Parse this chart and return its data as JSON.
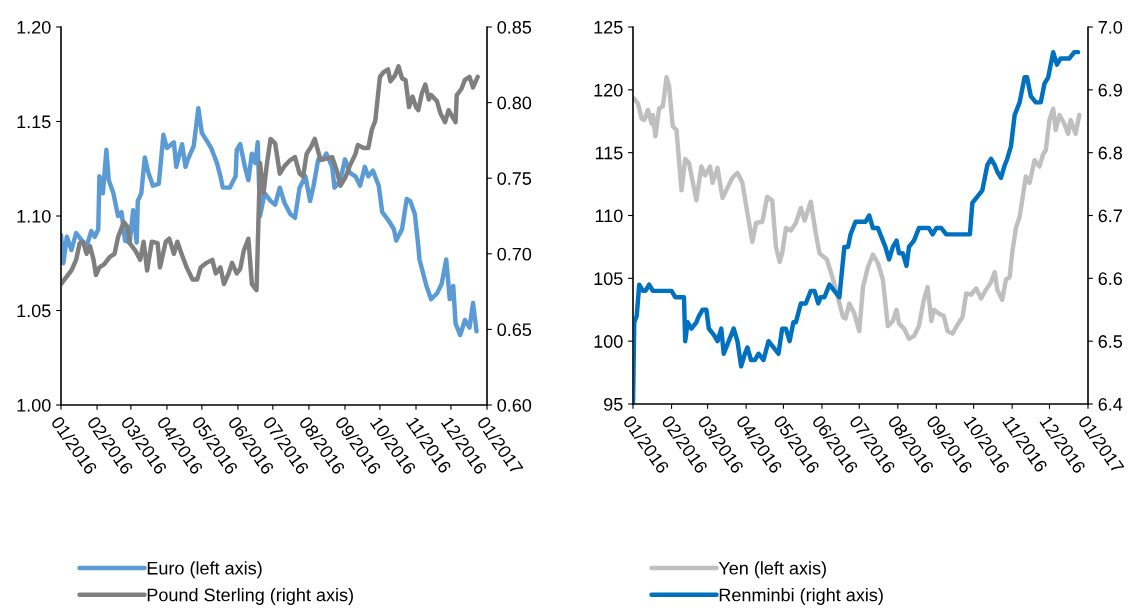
{
  "chart_data": [
    {
      "type": "line",
      "legend": "bottom",
      "xlim": [
        "2016-01-01",
        "2017-01-01"
      ],
      "xticks": [
        {
          "value": "2016-01-01",
          "label": "01/2016"
        },
        {
          "value": "2016-02-01",
          "label": "02/2016"
        },
        {
          "value": "2016-03-01",
          "label": "03/2016"
        },
        {
          "value": "2016-04-01",
          "label": "04/2016"
        },
        {
          "value": "2016-05-01",
          "label": "05/2016"
        },
        {
          "value": "2016-06-01",
          "label": "06/2016"
        },
        {
          "value": "2016-07-01",
          "label": "07/2016"
        },
        {
          "value": "2016-08-01",
          "label": "08/2016"
        },
        {
          "value": "2016-09-01",
          "label": "09/2016"
        },
        {
          "value": "2016-10-01",
          "label": "10/2016"
        },
        {
          "value": "2016-11-01",
          "label": "11/2016"
        },
        {
          "value": "2016-12-01",
          "label": "12/2016"
        },
        {
          "value": "2017-01-01",
          "label": "01/2017"
        }
      ],
      "ylim": [
        1.0,
        1.2
      ],
      "yticks": [
        {
          "value": 1.0,
          "label": "1.00"
        },
        {
          "value": 1.05,
          "label": "1.05"
        },
        {
          "value": 1.1,
          "label": "1.10"
        },
        {
          "value": 1.15,
          "label": "1.15"
        },
        {
          "value": 1.2,
          "label": "1.20"
        }
      ],
      "y2lim": [
        0.6,
        0.85
      ],
      "y2ticks": [
        {
          "value": 0.6,
          "label": "0.60"
        },
        {
          "value": 0.65,
          "label": "0.65"
        },
        {
          "value": 0.7,
          "label": "0.70"
        },
        {
          "value": 0.75,
          "label": "0.75"
        },
        {
          "value": 0.8,
          "label": "0.80"
        },
        {
          "value": 0.85,
          "label": "0.85"
        }
      ],
      "series": [
        {
          "name": "Euro (left axis)",
          "color": "#5b9bd5",
          "x": [
            "2016-01-01",
            "2016-01-03",
            "2016-01-06",
            "2016-01-10",
            "2016-01-14",
            "2016-01-19",
            "2016-01-23",
            "2016-01-27",
            "2016-01-30",
            "2016-02-02",
            "2016-02-03",
            "2016-02-06",
            "2016-02-09",
            "2016-02-11",
            "2016-02-15",
            "2016-02-19",
            "2016-02-22",
            "2016-02-25",
            "2016-02-29",
            "2016-03-03",
            "2016-03-06",
            "2016-03-07",
            "2016-03-10",
            "2016-03-13",
            "2016-03-16",
            "2016-03-20",
            "2016-03-25",
            "2016-03-29",
            "2016-04-01",
            "2016-04-07",
            "2016-04-09",
            "2016-04-14",
            "2016-04-17",
            "2016-04-19",
            "2016-04-24",
            "2016-04-28",
            "2016-05-01",
            "2016-05-05",
            "2016-05-09",
            "2016-05-14",
            "2016-05-17",
            "2016-05-19",
            "2016-05-25",
            "2016-05-30",
            "2016-05-31",
            "2016-06-03",
            "2016-06-07",
            "2016-06-10",
            "2016-06-13",
            "2016-06-16",
            "2016-06-18",
            "2016-06-20",
            "2016-06-24",
            "2016-06-29",
            "2016-07-03",
            "2016-07-07",
            "2016-07-11",
            "2016-07-16",
            "2016-07-20",
            "2016-07-24",
            "2016-07-29",
            "2016-08-02",
            "2016-08-05",
            "2016-08-09",
            "2016-08-13",
            "2016-08-16",
            "2016-08-21",
            "2016-08-23",
            "2016-08-28",
            "2016-09-01",
            "2016-09-05",
            "2016-09-10",
            "2016-09-14",
            "2016-09-18",
            "2016-09-21",
            "2016-09-25",
            "2016-09-30",
            "2016-10-03",
            "2016-10-08",
            "2016-10-13",
            "2016-10-15",
            "2016-10-20",
            "2016-10-24",
            "2016-10-27",
            "2016-10-31",
            "2016-11-03",
            "2016-11-04",
            "2016-11-07",
            "2016-11-10",
            "2016-11-14",
            "2016-11-19",
            "2016-11-23",
            "2016-11-27",
            "2016-11-30",
            "2016-12-03",
            "2016-12-05",
            "2016-12-09",
            "2016-12-13",
            "2016-12-17",
            "2016-12-20",
            "2016-12-23"
          ],
          "values": [
            1.09,
            1.075,
            1.089,
            1.082,
            1.091,
            1.087,
            1.084,
            1.092,
            1.089,
            1.093,
            1.121,
            1.112,
            1.135,
            1.119,
            1.112,
            1.1,
            1.102,
            1.087,
            1.086,
            1.103,
            1.086,
            1.108,
            1.112,
            1.131,
            1.123,
            1.116,
            1.117,
            1.143,
            1.136,
            1.139,
            1.126,
            1.138,
            1.126,
            1.13,
            1.137,
            1.157,
            1.144,
            1.14,
            1.136,
            1.128,
            1.121,
            1.115,
            1.115,
            1.121,
            1.135,
            1.138,
            1.126,
            1.119,
            1.133,
            1.128,
            1.139,
            1.1,
            1.112,
            1.108,
            1.106,
            1.115,
            1.107,
            1.101,
            1.099,
            1.115,
            1.121,
            1.108,
            1.116,
            1.13,
            1.13,
            1.133,
            1.126,
            1.115,
            1.119,
            1.13,
            1.123,
            1.121,
            1.116,
            1.126,
            1.121,
            1.124,
            1.116,
            1.102,
            1.098,
            1.093,
            1.087,
            1.093,
            1.109,
            1.108,
            1.101,
            1.084,
            1.077,
            1.07,
            1.063,
            1.056,
            1.059,
            1.064,
            1.077,
            1.056,
            1.063,
            1.043,
            1.037,
            1.045,
            1.041,
            1.054,
            1.039
          ]
        },
        {
          "name": "Pound Sterling (right axis)",
          "color": "#7f7f7f",
          "axis": "y2",
          "x": [
            "2016-01-01",
            "2016-01-06",
            "2016-01-10",
            "2016-01-14",
            "2016-01-17",
            "2016-01-20",
            "2016-01-23",
            "2016-01-26",
            "2016-01-29",
            "2016-01-31",
            "2016-02-03",
            "2016-02-07",
            "2016-02-12",
            "2016-02-16",
            "2016-02-19",
            "2016-02-24",
            "2016-02-27",
            "2016-02-29",
            "2016-03-05",
            "2016-03-09",
            "2016-03-12",
            "2016-03-15",
            "2016-03-19",
            "2016-03-24",
            "2016-03-26",
            "2016-03-31",
            "2016-04-03",
            "2016-04-07",
            "2016-04-10",
            "2016-04-14",
            "2016-04-18",
            "2016-04-23",
            "2016-04-27",
            "2016-04-30",
            "2016-05-05",
            "2016-05-10",
            "2016-05-13",
            "2016-05-17",
            "2016-05-20",
            "2016-05-24",
            "2016-05-27",
            "2016-05-31",
            "2016-06-03",
            "2016-06-06",
            "2016-06-10",
            "2016-06-13",
            "2016-06-17",
            "2016-06-20",
            "2016-06-23",
            "2016-06-26",
            "2016-06-29",
            "2016-07-03",
            "2016-07-07",
            "2016-07-11",
            "2016-07-16",
            "2016-07-20",
            "2016-07-24",
            "2016-07-27",
            "2016-07-30",
            "2016-08-03",
            "2016-08-06",
            "2016-08-11",
            "2016-08-16",
            "2016-08-21",
            "2016-08-25",
            "2016-08-28",
            "2016-09-01",
            "2016-09-05",
            "2016-09-10",
            "2016-09-12",
            "2016-09-17",
            "2016-09-21",
            "2016-09-24",
            "2016-09-27",
            "2016-10-01",
            "2016-10-04",
            "2016-10-08",
            "2016-10-10",
            "2016-10-14",
            "2016-10-17",
            "2016-10-20",
            "2016-10-23",
            "2016-10-26",
            "2016-10-29",
            "2016-11-01",
            "2016-11-03",
            "2016-11-06",
            "2016-11-09",
            "2016-11-12",
            "2016-11-14",
            "2016-11-19",
            "2016-11-22",
            "2016-11-26",
            "2016-11-29",
            "2016-12-02",
            "2016-12-05",
            "2016-12-06",
            "2016-12-10",
            "2016-12-13",
            "2016-12-17",
            "2016-12-20",
            "2016-12-24"
          ],
          "values": [
            0.68,
            0.685,
            0.689,
            0.696,
            0.707,
            0.708,
            0.7,
            0.705,
            0.696,
            0.686,
            0.691,
            0.693,
            0.698,
            0.7,
            0.711,
            0.721,
            0.718,
            0.707,
            0.702,
            0.696,
            0.708,
            0.689,
            0.708,
            0.707,
            0.691,
            0.708,
            0.71,
            0.7,
            0.708,
            0.699,
            0.691,
            0.683,
            0.683,
            0.691,
            0.694,
            0.696,
            0.687,
            0.691,
            0.68,
            0.687,
            0.694,
            0.687,
            0.69,
            0.702,
            0.71,
            0.68,
            0.676,
            0.76,
            0.74,
            0.76,
            0.776,
            0.773,
            0.753,
            0.758,
            0.762,
            0.764,
            0.753,
            0.751,
            0.766,
            0.771,
            0.776,
            0.762,
            0.763,
            0.764,
            0.755,
            0.745,
            0.75,
            0.758,
            0.766,
            0.772,
            0.77,
            0.77,
            0.782,
            0.788,
            0.817,
            0.82,
            0.822,
            0.814,
            0.818,
            0.824,
            0.816,
            0.815,
            0.797,
            0.804,
            0.797,
            0.795,
            0.806,
            0.812,
            0.802,
            0.805,
            0.801,
            0.793,
            0.787,
            0.795,
            0.791,
            0.787,
            0.805,
            0.809,
            0.815,
            0.817,
            0.81,
            0.817
          ]
        }
      ]
    },
    {
      "type": "line",
      "legend": "bottom",
      "xlim": [
        "2016-01-01",
        "2017-01-01"
      ],
      "xticks": [
        {
          "value": "2016-01-01",
          "label": "01/2016"
        },
        {
          "value": "2016-02-01",
          "label": "02/2016"
        },
        {
          "value": "2016-03-01",
          "label": "03/2016"
        },
        {
          "value": "2016-04-01",
          "label": "04/2016"
        },
        {
          "value": "2016-05-01",
          "label": "05/2016"
        },
        {
          "value": "2016-06-01",
          "label": "06/2016"
        },
        {
          "value": "2016-07-01",
          "label": "07/2016"
        },
        {
          "value": "2016-08-01",
          "label": "08/2016"
        },
        {
          "value": "2016-09-01",
          "label": "09/2016"
        },
        {
          "value": "2016-10-01",
          "label": "10/2016"
        },
        {
          "value": "2016-11-01",
          "label": "11/2016"
        },
        {
          "value": "2016-12-01",
          "label": "12/2016"
        },
        {
          "value": "2017-01-01",
          "label": "01/2017"
        }
      ],
      "ylim": [
        95,
        125
      ],
      "yticks": [
        95,
        100,
        105,
        110,
        115,
        120,
        125
      ],
      "y2lim": [
        6.4,
        7.0
      ],
      "y2ticks": [
        6.4,
        6.5,
        6.6,
        6.7,
        6.8,
        6.9,
        {
          "value": 7.0,
          "label": "7.0"
        }
      ],
      "series": [
        {
          "name": "Yen (left axis)",
          "color": "#bfbfbf",
          "x": [
            "2016-01-02",
            "2016-01-05",
            "2016-01-08",
            "2016-01-10",
            "2016-01-13",
            "2016-01-16",
            "2016-01-17",
            "2016-01-19",
            "2016-01-22",
            "2016-01-25",
            "2016-01-28",
            "2016-01-30",
            "2016-02-02",
            "2016-02-05",
            "2016-02-07",
            "2016-02-09",
            "2016-02-12",
            "2016-02-15",
            "2016-02-18",
            "2016-02-21",
            "2016-02-25",
            "2016-02-28",
            "2016-03-03",
            "2016-03-05",
            "2016-03-09",
            "2016-03-13",
            "2016-03-17",
            "2016-03-21",
            "2016-03-25",
            "2016-03-29",
            "2016-04-02",
            "2016-04-06",
            "2016-04-09",
            "2016-04-14",
            "2016-04-18",
            "2016-04-22",
            "2016-04-25",
            "2016-04-28",
            "2016-04-30",
            "2016-05-03",
            "2016-05-07",
            "2016-05-11",
            "2016-05-15",
            "2016-05-18",
            "2016-05-20",
            "2016-05-23",
            "2016-05-27",
            "2016-05-30",
            "2016-06-05",
            "2016-06-10",
            "2016-06-14",
            "2016-06-18",
            "2016-06-20",
            "2016-06-23",
            "2016-06-27",
            "2016-07-01",
            "2016-07-04",
            "2016-07-08",
            "2016-07-12",
            "2016-07-16",
            "2016-07-20",
            "2016-07-24",
            "2016-07-28",
            "2016-07-31",
            "2016-08-02",
            "2016-08-06",
            "2016-08-10",
            "2016-08-14",
            "2016-08-18",
            "2016-08-22",
            "2016-08-25",
            "2016-08-28",
            "2016-08-30",
            "2016-09-03",
            "2016-09-07",
            "2016-09-10",
            "2016-09-14",
            "2016-09-18",
            "2016-09-22",
            "2016-09-25",
            "2016-09-29",
            "2016-10-03",
            "2016-10-07",
            "2016-10-11",
            "2016-10-15",
            "2016-10-18",
            "2016-10-20",
            "2016-10-24",
            "2016-10-27",
            "2016-10-30",
            "2016-11-01",
            "2016-11-04",
            "2016-11-07",
            "2016-11-10",
            "2016-11-12",
            "2016-11-15",
            "2016-11-19",
            "2016-11-23",
            "2016-11-26",
            "2016-11-28",
            "2016-12-01",
            "2016-12-04",
            "2016-12-06",
            "2016-12-09",
            "2016-12-13",
            "2016-12-16",
            "2016-12-18",
            "2016-12-22",
            "2016-12-25"
          ],
          "values": [
            119.3,
            118.9,
            117.7,
            117.6,
            118.4,
            117.3,
            118.0,
            116.3,
            118.5,
            118.7,
            121.0,
            120.3,
            117.1,
            116.8,
            114.4,
            112.0,
            114.5,
            114.2,
            112.7,
            111.2,
            113.9,
            113.2,
            113.9,
            112.6,
            113.8,
            111.4,
            112.2,
            113.0,
            113.4,
            112.6,
            110.2,
            107.9,
            109.4,
            109.5,
            111.5,
            111.2,
            107.5,
            106.3,
            107.0,
            109.0,
            108.8,
            109.4,
            110.6,
            109.6,
            110.2,
            111.1,
            108.6,
            107.0,
            106.5,
            104.9,
            103.4,
            101.9,
            101.8,
            103.0,
            102.2,
            100.8,
            104.3,
            105.9,
            106.9,
            106.2,
            104.9,
            101.2,
            101.6,
            102.5,
            101.4,
            101.0,
            100.2,
            100.4,
            101.2,
            103.3,
            104.3,
            101.6,
            102.5,
            102.2,
            102.0,
            100.8,
            100.6,
            101.3,
            101.9,
            103.8,
            103.7,
            104.2,
            103.4,
            104.1,
            104.7,
            105.5,
            104.1,
            103.3,
            104.9,
            105.1,
            107.0,
            109.0,
            109.9,
            111.8,
            113.1,
            112.6,
            114.4,
            113.9,
            114.9,
            115.2,
            117.6,
            118.5,
            116.8,
            118.0,
            117.3,
            116.5,
            117.6,
            116.5,
            118.0
          ]
        },
        {
          "name": "Renminbi (right axis)",
          "color": "#0070c0",
          "axis": "y2",
          "x": [
            "2016-01-01",
            "2016-01-02",
            "2016-01-04",
            "2016-01-06",
            "2016-01-09",
            "2016-01-11",
            "2016-01-14",
            "2016-01-17",
            "2016-01-21",
            "2016-01-25",
            "2016-01-28",
            "2016-02-01",
            "2016-02-04",
            "2016-02-08",
            "2016-02-11",
            "2016-02-12",
            "2016-02-14",
            "2016-02-17",
            "2016-02-21",
            "2016-02-23",
            "2016-02-26",
            "2016-02-29",
            "2016-03-02",
            "2016-03-06",
            "2016-03-09",
            "2016-03-12",
            "2016-03-14",
            "2016-03-18",
            "2016-03-22",
            "2016-03-25",
            "2016-03-28",
            "2016-03-31",
            "2016-04-02",
            "2016-04-05",
            "2016-04-08",
            "2016-04-11",
            "2016-04-15",
            "2016-04-19",
            "2016-04-23",
            "2016-04-27",
            "2016-04-30",
            "2016-05-03",
            "2016-05-06",
            "2016-05-09",
            "2016-05-11",
            "2016-05-15",
            "2016-05-19",
            "2016-05-23",
            "2016-05-26",
            "2016-05-29",
            "2016-05-31",
            "2016-06-03",
            "2016-06-07",
            "2016-06-11",
            "2016-06-15",
            "2016-06-19",
            "2016-06-22",
            "2016-06-24",
            "2016-06-28",
            "2016-07-02",
            "2016-07-06",
            "2016-07-09",
            "2016-07-12",
            "2016-07-16",
            "2016-07-20",
            "2016-07-22",
            "2016-07-25",
            "2016-07-28",
            "2016-07-31",
            "2016-08-02",
            "2016-08-05",
            "2016-08-08",
            "2016-08-10",
            "2016-08-14",
            "2016-08-18",
            "2016-08-22",
            "2016-08-26",
            "2016-08-29",
            "2016-09-01",
            "2016-09-05",
            "2016-09-09",
            "2016-09-13",
            "2016-09-17",
            "2016-09-21",
            "2016-09-28",
            "2016-09-30",
            "2016-10-04",
            "2016-10-08",
            "2016-10-12",
            "2016-10-15",
            "2016-10-18",
            "2016-10-20",
            "2016-10-23",
            "2016-10-26",
            "2016-10-28",
            "2016-10-31",
            "2016-11-03",
            "2016-11-07",
            "2016-11-11",
            "2016-11-13",
            "2016-11-16",
            "2016-11-20",
            "2016-11-24",
            "2016-11-27",
            "2016-11-30",
            "2016-12-04",
            "2016-12-07",
            "2016-12-10",
            "2016-12-14",
            "2016-12-17",
            "2016-12-21",
            "2016-12-24"
          ],
          "values": [
            6.4,
            6.53,
            6.54,
            6.59,
            6.58,
            6.58,
            6.59,
            6.58,
            6.58,
            6.58,
            6.58,
            6.58,
            6.57,
            6.57,
            6.57,
            6.5,
            6.53,
            6.52,
            6.53,
            6.54,
            6.55,
            6.55,
            6.52,
            6.51,
            6.5,
            6.52,
            6.48,
            6.5,
            6.52,
            6.5,
            6.46,
            6.48,
            6.49,
            6.47,
            6.47,
            6.48,
            6.47,
            6.5,
            6.49,
            6.48,
            6.52,
            6.52,
            6.5,
            6.53,
            6.53,
            6.56,
            6.56,
            6.58,
            6.58,
            6.56,
            6.57,
            6.57,
            6.59,
            6.58,
            6.57,
            6.65,
            6.65,
            6.67,
            6.69,
            6.69,
            6.69,
            6.7,
            6.68,
            6.68,
            6.66,
            6.65,
            6.63,
            6.65,
            6.66,
            6.64,
            6.64,
            6.62,
            6.65,
            6.66,
            6.68,
            6.68,
            6.68,
            6.67,
            6.68,
            6.68,
            6.67,
            6.67,
            6.67,
            6.67,
            6.67,
            6.72,
            6.73,
            6.74,
            6.78,
            6.79,
            6.78,
            6.77,
            6.76,
            6.78,
            6.79,
            6.81,
            6.86,
            6.88,
            6.92,
            6.92,
            6.89,
            6.88,
            6.88,
            6.91,
            6.92,
            6.96,
            6.94,
            6.95,
            6.95,
            6.95,
            6.96,
            6.96
          ]
        }
      ]
    }
  ]
}
